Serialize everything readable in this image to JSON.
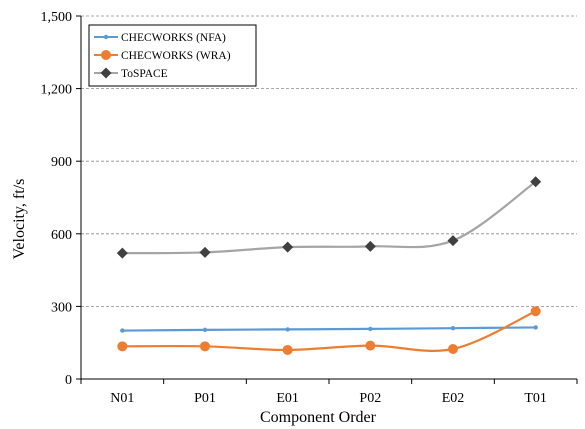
{
  "chart_data": {
    "type": "line",
    "categories": [
      "N01",
      "P01",
      "E01",
      "P02",
      "E02",
      "T01"
    ],
    "xlabel": "Component Order",
    "ylabel": "Velocity, ft/s",
    "ylim": [
      0,
      1500
    ],
    "yticks": [
      0,
      300,
      600,
      900,
      1200,
      1500
    ],
    "ytick_labels": [
      "0",
      "300",
      "600",
      "900",
      "1,200",
      "1,500"
    ],
    "grid": "horizontal dashed",
    "legend_position": "top-left",
    "smooth": true,
    "series": [
      {
        "name": "CHECWORKS (NFA)",
        "color": "#5b9bd5",
        "marker": "dot",
        "values": [
          200,
          203,
          205,
          207,
          210,
          213
        ]
      },
      {
        "name": "CHECWORKS (WRA)",
        "color": "#ed7d31",
        "marker": "circle",
        "values": [
          135,
          135,
          120,
          138,
          124,
          280
        ]
      },
      {
        "name": "ToSPACE",
        "color": "#a5a5a5",
        "marker": "diamond",
        "markerColor": "#404040",
        "values": [
          520,
          523,
          545,
          548,
          572,
          815
        ]
      }
    ]
  }
}
